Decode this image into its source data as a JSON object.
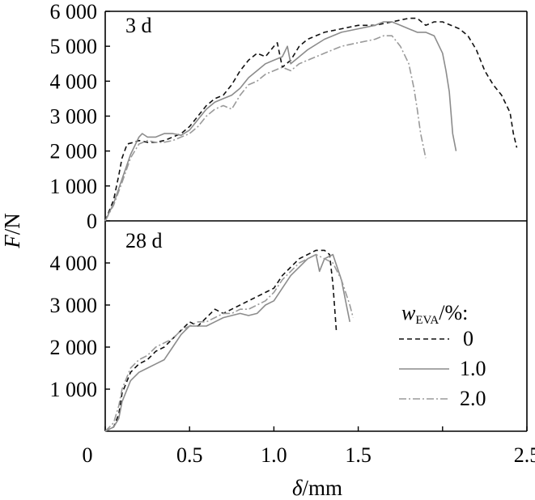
{
  "chart_data": {
    "type": "line",
    "ylabel_main": "F",
    "ylabel_unit": "/N",
    "xlabel_main": "δ",
    "xlabel_unit": "/mm",
    "x_ticks": [
      "0",
      "0.5",
      "1.0",
      "1.5",
      "2.5"
    ],
    "x_tick_values": [
      0,
      0.5,
      1.0,
      1.5,
      2.5
    ],
    "xlim": [
      0,
      2.5
    ],
    "legend": {
      "title_main": "w",
      "title_sub": "EVA",
      "title_tail": "/%:",
      "placement": "right, bottom panel",
      "entries": [
        "0",
        "1.0",
        "2.0"
      ]
    },
    "series_styles": [
      {
        "name": "0",
        "color": "#111111",
        "dash": "6,4"
      },
      {
        "name": "1.0",
        "color": "#8c8c8c",
        "dash": ""
      },
      {
        "name": "2.0",
        "color": "#9a9a9a",
        "dash": "9,3,2,3"
      }
    ],
    "panels": [
      {
        "label": "3 d",
        "ylim": [
          0,
          6000
        ],
        "y_ticks": [
          "0",
          "1 000",
          "2 000",
          "3 000",
          "4 000",
          "5 000",
          "6 000"
        ],
        "y_tick_values": [
          0,
          1000,
          2000,
          3000,
          4000,
          5000,
          6000
        ],
        "series": [
          {
            "name": "0",
            "points": [
              [
                0,
                0
              ],
              [
                0.05,
                600
              ],
              [
                0.08,
                1300
              ],
              [
                0.1,
                1800
              ],
              [
                0.13,
                2200
              ],
              [
                0.17,
                2250
              ],
              [
                0.2,
                2300
              ],
              [
                0.25,
                2250
              ],
              [
                0.3,
                2250
              ],
              [
                0.35,
                2300
              ],
              [
                0.4,
                2400
              ],
              [
                0.45,
                2500
              ],
              [
                0.5,
                2700
              ],
              [
                0.55,
                3000
              ],
              [
                0.6,
                3300
              ],
              [
                0.65,
                3500
              ],
              [
                0.7,
                3600
              ],
              [
                0.75,
                3900
              ],
              [
                0.8,
                4300
              ],
              [
                0.85,
                4600
              ],
              [
                0.9,
                4800
              ],
              [
                0.95,
                4700
              ],
              [
                1.0,
                5000
              ],
              [
                1.02,
                5100
              ],
              [
                1.05,
                4400
              ],
              [
                1.1,
                4600
              ],
              [
                1.15,
                5000
              ],
              [
                1.2,
                5200
              ],
              [
                1.3,
                5400
              ],
              [
                1.4,
                5500
              ],
              [
                1.5,
                5600
              ],
              [
                1.6,
                5600
              ],
              [
                1.7,
                5700
              ],
              [
                1.8,
                5800
              ],
              [
                1.85,
                5800
              ],
              [
                1.9,
                5600
              ],
              [
                1.95,
                5700
              ],
              [
                2.0,
                5700
              ],
              [
                2.05,
                5600
              ],
              [
                2.1,
                5500
              ],
              [
                2.15,
                5300
              ],
              [
                2.2,
                4900
              ],
              [
                2.25,
                4300
              ],
              [
                2.3,
                3900
              ],
              [
                2.35,
                3600
              ],
              [
                2.4,
                3100
              ],
              [
                2.42,
                2500
              ],
              [
                2.44,
                2100
              ]
            ]
          },
          {
            "name": "1.0",
            "points": [
              [
                0,
                0
              ],
              [
                0.05,
                500
              ],
              [
                0.1,
                1200
              ],
              [
                0.15,
                1900
              ],
              [
                0.2,
                2400
              ],
              [
                0.22,
                2500
              ],
              [
                0.25,
                2400
              ],
              [
                0.3,
                2400
              ],
              [
                0.35,
                2500
              ],
              [
                0.4,
                2500
              ],
              [
                0.45,
                2450
              ],
              [
                0.5,
                2600
              ],
              [
                0.55,
                2900
              ],
              [
                0.6,
                3200
              ],
              [
                0.65,
                3400
              ],
              [
                0.7,
                3500
              ],
              [
                0.75,
                3600
              ],
              [
                0.8,
                3800
              ],
              [
                0.85,
                4100
              ],
              [
                0.9,
                4300
              ],
              [
                0.95,
                4500
              ],
              [
                1.0,
                4600
              ],
              [
                1.05,
                4700
              ],
              [
                1.08,
                5000
              ],
              [
                1.1,
                4500
              ],
              [
                1.15,
                4700
              ],
              [
                1.2,
                4900
              ],
              [
                1.3,
                5200
              ],
              [
                1.4,
                5400
              ],
              [
                1.5,
                5500
              ],
              [
                1.6,
                5600
              ],
              [
                1.65,
                5700
              ],
              [
                1.7,
                5700
              ],
              [
                1.75,
                5600
              ],
              [
                1.8,
                5500
              ],
              [
                1.85,
                5400
              ],
              [
                1.9,
                5400
              ],
              [
                1.95,
                5300
              ],
              [
                2.0,
                4800
              ],
              [
                2.02,
                4300
              ],
              [
                2.04,
                3700
              ],
              [
                2.05,
                3100
              ],
              [
                2.06,
                2500
              ],
              [
                2.08,
                2000
              ]
            ]
          },
          {
            "name": "2.0",
            "points": [
              [
                0,
                0
              ],
              [
                0.05,
                450
              ],
              [
                0.1,
                1100
              ],
              [
                0.15,
                1800
              ],
              [
                0.2,
                2200
              ],
              [
                0.25,
                2300
              ],
              [
                0.3,
                2250
              ],
              [
                0.35,
                2250
              ],
              [
                0.4,
                2300
              ],
              [
                0.45,
                2400
              ],
              [
                0.5,
                2500
              ],
              [
                0.55,
                2700
              ],
              [
                0.6,
                3000
              ],
              [
                0.65,
                3200
              ],
              [
                0.7,
                3300
              ],
              [
                0.75,
                3200
              ],
              [
                0.8,
                3600
              ],
              [
                0.85,
                3900
              ],
              [
                0.9,
                4000
              ],
              [
                0.95,
                4200
              ],
              [
                1.0,
                4300
              ],
              [
                1.05,
                4400
              ],
              [
                1.1,
                4300
              ],
              [
                1.15,
                4500
              ],
              [
                1.2,
                4600
              ],
              [
                1.3,
                4800
              ],
              [
                1.4,
                5000
              ],
              [
                1.5,
                5100
              ],
              [
                1.6,
                5200
              ],
              [
                1.65,
                5300
              ],
              [
                1.7,
                5300
              ],
              [
                1.75,
                5000
              ],
              [
                1.8,
                4500
              ],
              [
                1.83,
                3800
              ],
              [
                1.85,
                3200
              ],
              [
                1.87,
                2500
              ],
              [
                1.9,
                1800
              ]
            ]
          }
        ]
      },
      {
        "label": "28 d",
        "ylim": [
          0,
          5000
        ],
        "y_ticks": [
          "1 000",
          "2 000",
          "3 000",
          "4 000"
        ],
        "y_tick_values": [
          1000,
          2000,
          3000,
          4000
        ],
        "series": [
          {
            "name": "0",
            "points": [
              [
                0,
                0
              ],
              [
                0.05,
                100
              ],
              [
                0.08,
                400
              ],
              [
                0.1,
                900
              ],
              [
                0.15,
                1400
              ],
              [
                0.2,
                1600
              ],
              [
                0.25,
                1700
              ],
              [
                0.3,
                1900
              ],
              [
                0.35,
                2000
              ],
              [
                0.4,
                2200
              ],
              [
                0.45,
                2400
              ],
              [
                0.5,
                2600
              ],
              [
                0.55,
                2500
              ],
              [
                0.6,
                2700
              ],
              [
                0.65,
                2900
              ],
              [
                0.7,
                2800
              ],
              [
                0.75,
                2900
              ],
              [
                0.8,
                3000
              ],
              [
                0.85,
                3100
              ],
              [
                0.9,
                3200
              ],
              [
                0.95,
                3300
              ],
              [
                1.0,
                3400
              ],
              [
                1.05,
                3700
              ],
              [
                1.1,
                3900
              ],
              [
                1.15,
                4100
              ],
              [
                1.2,
                4200
              ],
              [
                1.25,
                4300
              ],
              [
                1.3,
                4300
              ],
              [
                1.33,
                4200
              ],
              [
                1.35,
                3500
              ],
              [
                1.37,
                2400
              ]
            ]
          },
          {
            "name": "1.0",
            "points": [
              [
                0,
                0
              ],
              [
                0.05,
                100
              ],
              [
                0.08,
                300
              ],
              [
                0.1,
                700
              ],
              [
                0.15,
                1200
              ],
              [
                0.2,
                1400
              ],
              [
                0.25,
                1500
              ],
              [
                0.3,
                1600
              ],
              [
                0.35,
                1700
              ],
              [
                0.4,
                2000
              ],
              [
                0.45,
                2300
              ],
              [
                0.5,
                2500
              ],
              [
                0.55,
                2500
              ],
              [
                0.6,
                2500
              ],
              [
                0.65,
                2600
              ],
              [
                0.7,
                2700
              ],
              [
                0.75,
                2750
              ],
              [
                0.8,
                2800
              ],
              [
                0.85,
                2750
              ],
              [
                0.9,
                2800
              ],
              [
                0.95,
                3000
              ],
              [
                1.0,
                3100
              ],
              [
                1.05,
                3400
              ],
              [
                1.1,
                3700
              ],
              [
                1.15,
                3900
              ],
              [
                1.2,
                4100
              ],
              [
                1.25,
                4200
              ],
              [
                1.27,
                3800
              ],
              [
                1.3,
                4100
              ],
              [
                1.35,
                4200
              ],
              [
                1.4,
                3600
              ],
              [
                1.43,
                3000
              ],
              [
                1.45,
                2600
              ]
            ]
          },
          {
            "name": "2.0",
            "points": [
              [
                0,
                0
              ],
              [
                0.05,
                200
              ],
              [
                0.08,
                600
              ],
              [
                0.1,
                1000
              ],
              [
                0.15,
                1500
              ],
              [
                0.2,
                1700
              ],
              [
                0.25,
                1800
              ],
              [
                0.3,
                2000
              ],
              [
                0.35,
                2100
              ],
              [
                0.4,
                2200
              ],
              [
                0.45,
                2400
              ],
              [
                0.5,
                2500
              ],
              [
                0.55,
                2600
              ],
              [
                0.6,
                2600
              ],
              [
                0.65,
                2700
              ],
              [
                0.7,
                2800
              ],
              [
                0.75,
                2800
              ],
              [
                0.8,
                2900
              ],
              [
                0.85,
                2900
              ],
              [
                0.9,
                3000
              ],
              [
                0.95,
                3100
              ],
              [
                1.0,
                3300
              ],
              [
                1.05,
                3600
              ],
              [
                1.1,
                3800
              ],
              [
                1.15,
                4000
              ],
              [
                1.2,
                4100
              ],
              [
                1.25,
                4200
              ],
              [
                1.3,
                4100
              ],
              [
                1.35,
                4000
              ],
              [
                1.4,
                3600
              ],
              [
                1.45,
                3000
              ],
              [
                1.47,
                2700
              ]
            ]
          }
        ]
      }
    ]
  }
}
